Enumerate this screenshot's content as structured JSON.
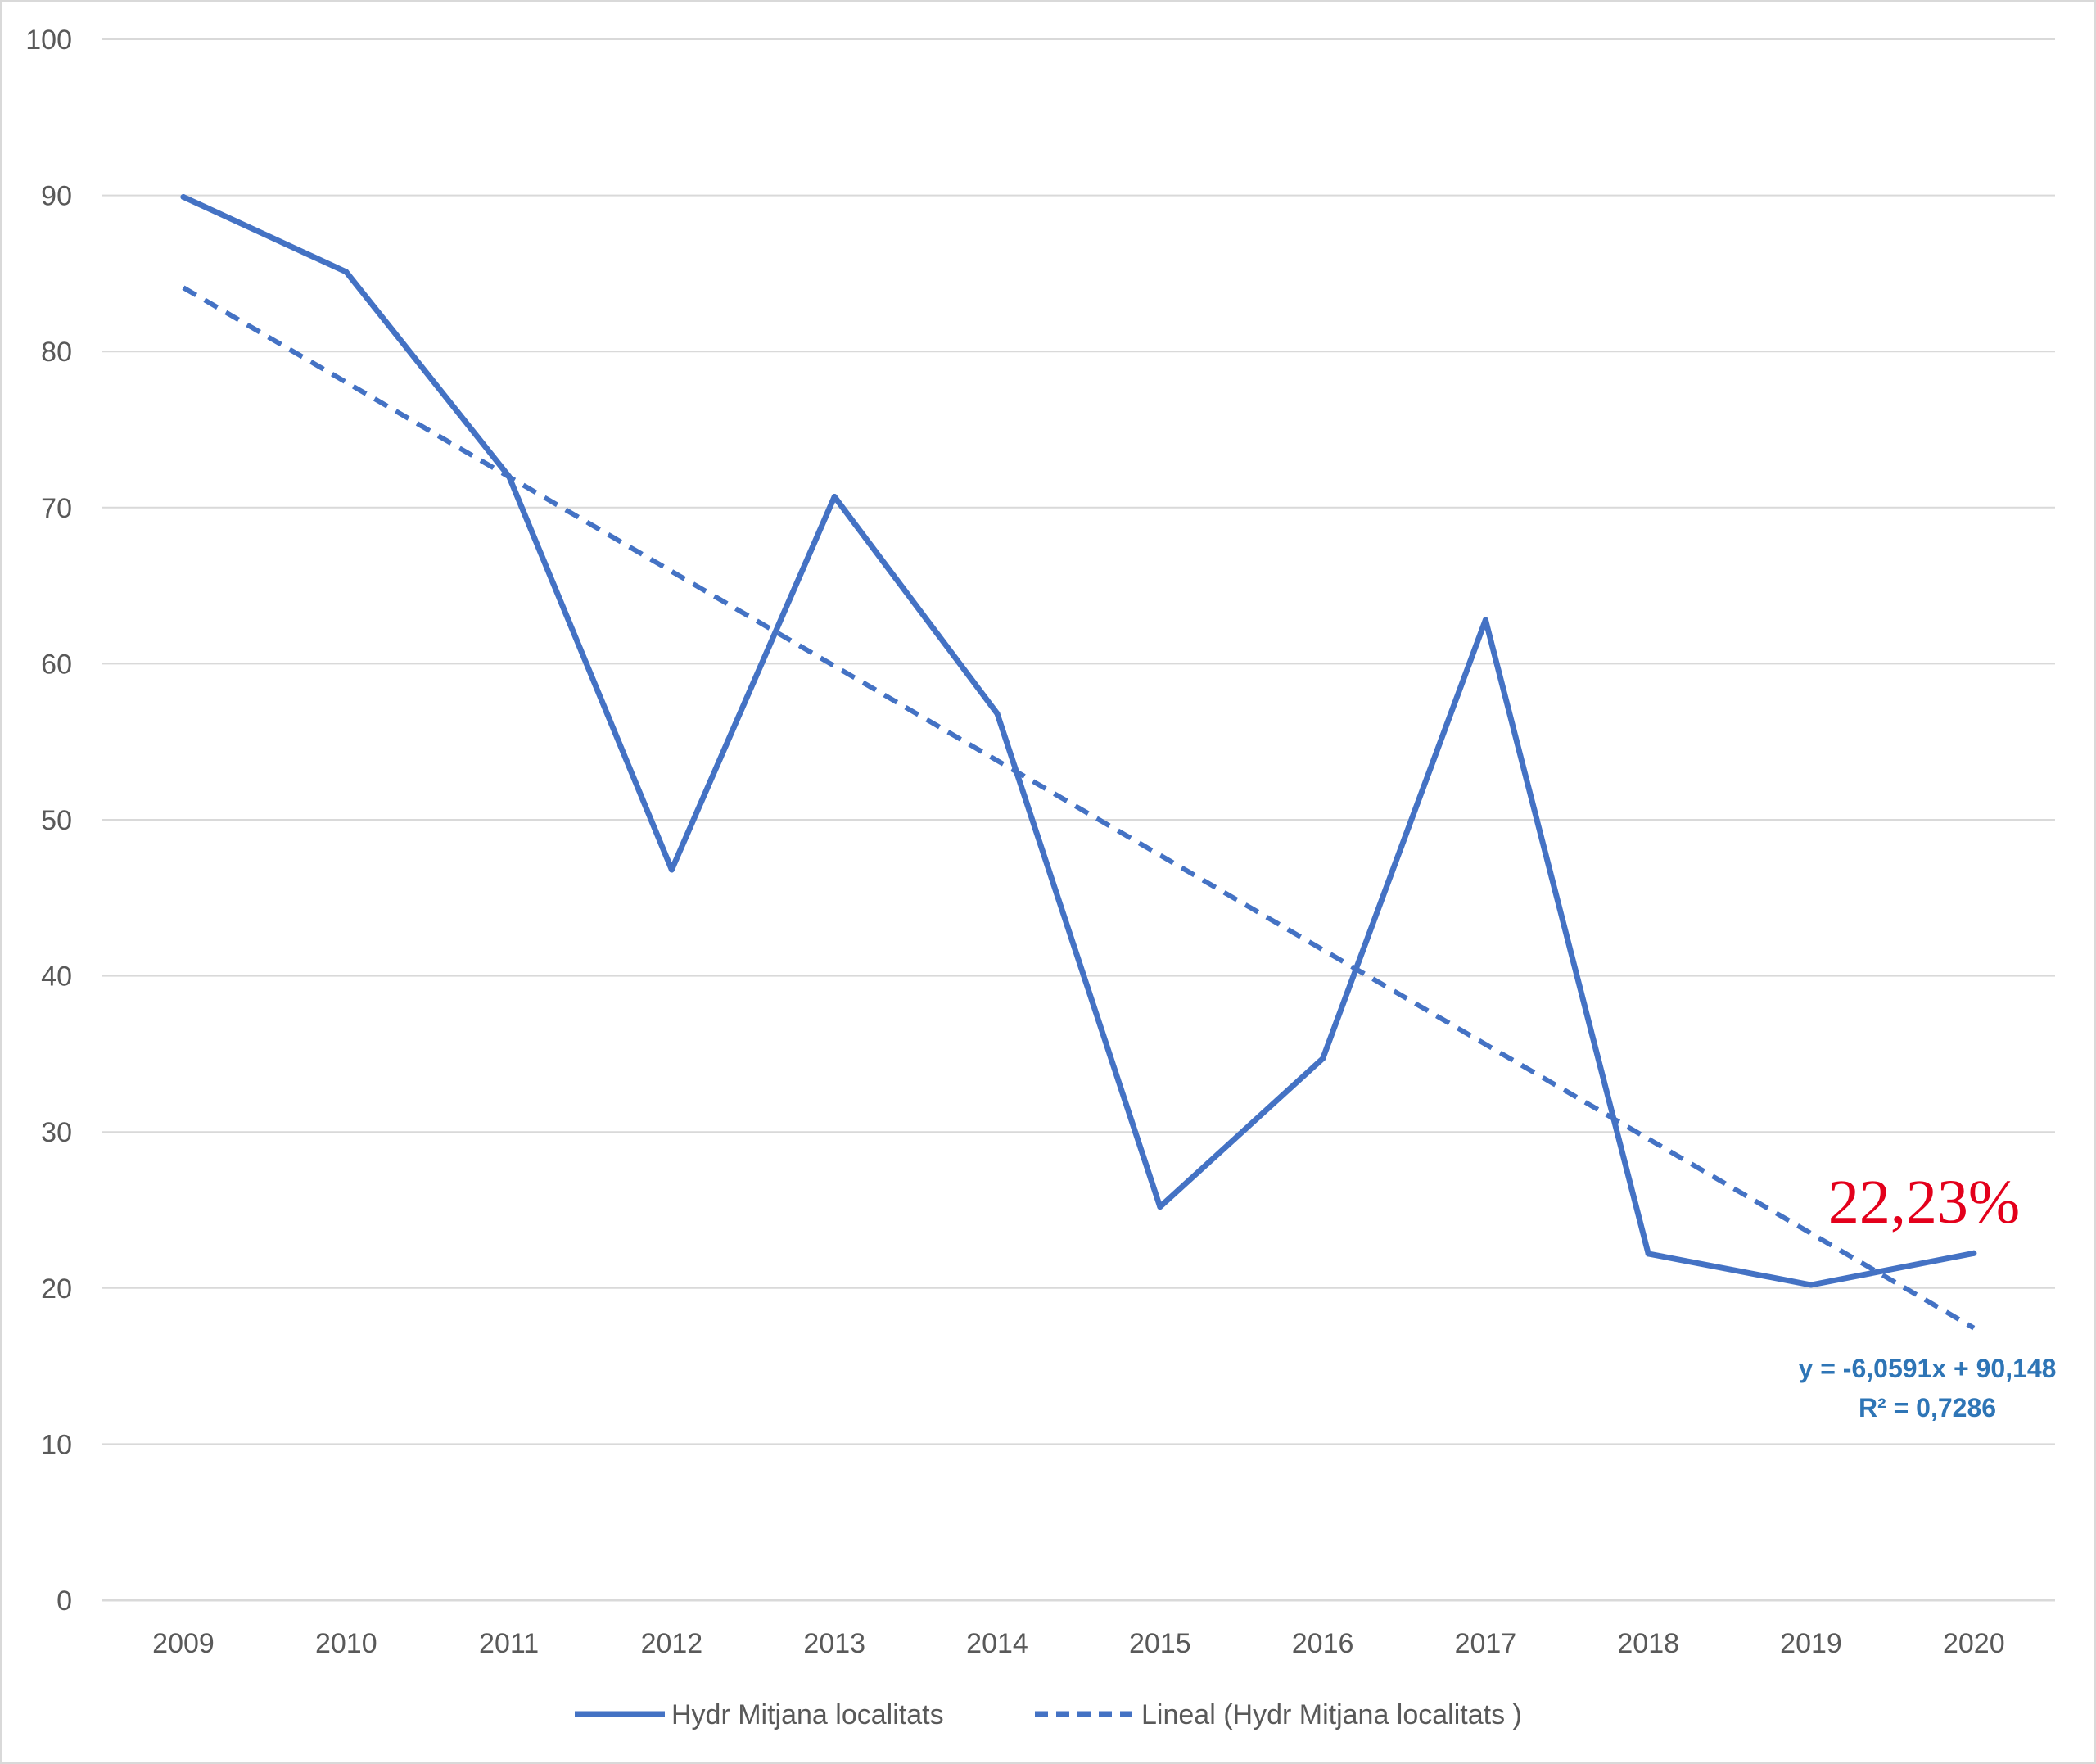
{
  "chart_data": {
    "type": "line",
    "categories": [
      "2009",
      "2010",
      "2011",
      "2012",
      "2013",
      "2014",
      "2015",
      "2016",
      "2017",
      "2018",
      "2019",
      "2020"
    ],
    "series": [
      {
        "name": "Hydr Mitjana localitats",
        "values": [
          89.9,
          85.1,
          72.0,
          46.8,
          70.7,
          56.8,
          25.2,
          34.7,
          62.8,
          22.2,
          20.2,
          22.23
        ],
        "color": "#4472c4",
        "style": "solid"
      }
    ],
    "trendline": {
      "name": "Lineal (Hydr Mitjana localitats )",
      "slope": -6.0591,
      "intercept": 90.148,
      "color": "#4472c4",
      "style": "dashed",
      "equation_label": "y = -6,0591x + 90,148",
      "r2_label": "R² = 0,7286",
      "label_color": "#2e75b6"
    },
    "annotation": {
      "text": "22,23%",
      "color": "#e3001b"
    },
    "yticks": [
      "0",
      "10",
      "20",
      "30",
      "40",
      "50",
      "60",
      "70",
      "80",
      "90",
      "100"
    ],
    "ylim": [
      0,
      100
    ],
    "ytick_step": 10,
    "grid": true,
    "gridline_color": "#d9d9d9",
    "legend_position": "bottom",
    "title": "",
    "xlabel": "",
    "ylabel": ""
  }
}
